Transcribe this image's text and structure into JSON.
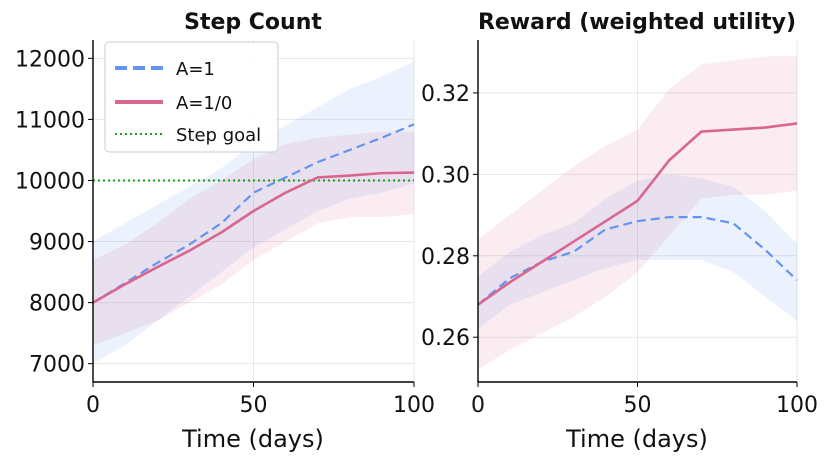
{
  "colors": {
    "A1": "#6495ED",
    "A10": "#D9668F",
    "goal": "#1a9e1a"
  },
  "chart_data": [
    {
      "type": "line",
      "title": "Step Count",
      "xlabel": "Time (days)",
      "ylabel": "",
      "xlim": [
        0,
        100
      ],
      "ylim": [
        6700,
        12300
      ],
      "xticks": [
        0,
        50,
        100
      ],
      "yticks": [
        7000,
        8000,
        9000,
        10000,
        11000,
        12000
      ],
      "grid": true,
      "legend": {
        "placement": "top-left",
        "entries": [
          {
            "label": "A=1",
            "style": "dashed",
            "color_key": "A1"
          },
          {
            "label": "A=1/0",
            "style": "solid",
            "color_key": "A10"
          },
          {
            "label": "Step goal",
            "style": "dotted",
            "color_key": "goal"
          }
        ]
      },
      "reference_line": {
        "name": "Step goal",
        "y": 10000
      },
      "series": [
        {
          "name": "A=1",
          "style": "dashed",
          "color_key": "A1",
          "x": [
            0,
            10,
            20,
            30,
            40,
            50,
            60,
            70,
            80,
            90,
            100
          ],
          "y": [
            8000,
            8320,
            8650,
            8950,
            9300,
            9800,
            10050,
            10300,
            10500,
            10700,
            10920
          ],
          "lower": [
            7000,
            7300,
            7700,
            8100,
            8500,
            8900,
            9200,
            9500,
            9700,
            9800,
            9950
          ],
          "upper": [
            9000,
            9300,
            9600,
            9900,
            10200,
            10600,
            10900,
            11200,
            11500,
            11700,
            11950
          ]
        },
        {
          "name": "A=1/0",
          "style": "solid",
          "color_key": "A10",
          "x": [
            0,
            10,
            20,
            30,
            40,
            50,
            60,
            70,
            80,
            90,
            100
          ],
          "y": [
            8000,
            8300,
            8580,
            8850,
            9150,
            9500,
            9800,
            10050,
            10080,
            10120,
            10130
          ],
          "lower": [
            7300,
            7500,
            7700,
            8000,
            8300,
            8700,
            9000,
            9300,
            9400,
            9400,
            9450
          ],
          "upper": [
            8700,
            8950,
            9300,
            9700,
            10000,
            10350,
            10600,
            10700,
            10750,
            10800,
            10800
          ]
        }
      ]
    },
    {
      "type": "line",
      "title": "Reward (weighted utility)",
      "xlabel": "Time (days)",
      "ylabel": "",
      "xlim": [
        0,
        100
      ],
      "ylim": [
        0.249,
        0.333
      ],
      "xticks": [
        0,
        50,
        100
      ],
      "yticks": [
        0.26,
        0.28,
        0.3,
        0.32
      ],
      "ytick_labels": [
        "0.26",
        "0.28",
        "0.30",
        "0.32"
      ],
      "grid": true,
      "series": [
        {
          "name": "A=1",
          "style": "dashed",
          "color_key": "A1",
          "x": [
            0,
            10,
            20,
            30,
            40,
            50,
            60,
            70,
            80,
            90,
            100
          ],
          "y": [
            0.268,
            0.2745,
            0.2785,
            0.281,
            0.2865,
            0.2885,
            0.2895,
            0.2895,
            0.288,
            0.2815,
            0.274
          ],
          "lower": [
            0.262,
            0.268,
            0.271,
            0.274,
            0.277,
            0.279,
            0.279,
            0.279,
            0.276,
            0.27,
            0.264
          ],
          "upper": [
            0.275,
            0.281,
            0.285,
            0.288,
            0.294,
            0.2985,
            0.3,
            0.299,
            0.297,
            0.291,
            0.283
          ]
        },
        {
          "name": "A=1/0",
          "style": "solid",
          "color_key": "A10",
          "x": [
            0,
            10,
            20,
            30,
            40,
            50,
            60,
            70,
            80,
            90,
            100
          ],
          "y": [
            0.268,
            0.2735,
            0.2785,
            0.2835,
            0.2885,
            0.2935,
            0.3035,
            0.3105,
            0.311,
            0.3115,
            0.3125
          ],
          "lower": [
            0.252,
            0.257,
            0.261,
            0.265,
            0.27,
            0.276,
            0.285,
            0.294,
            0.295,
            0.295,
            0.296
          ],
          "upper": [
            0.284,
            0.29,
            0.296,
            0.302,
            0.307,
            0.311,
            0.321,
            0.327,
            0.328,
            0.329,
            0.329
          ]
        }
      ]
    }
  ]
}
